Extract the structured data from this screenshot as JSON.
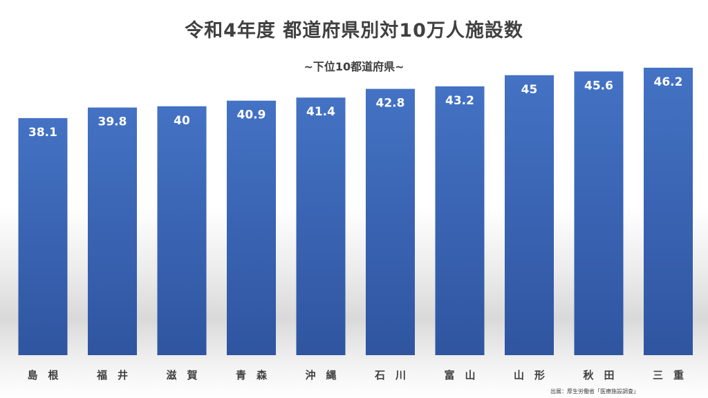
{
  "title": "令和4年度 都道府県別対10万人施設数",
  "subtitle": "~下位10都道府県~",
  "source": "出展：厚生労働省「医療施設調査」",
  "colors": {
    "bar_top": "#4472c4",
    "bar_bottom": "#2f55a0",
    "label": "#ffffff",
    "text": "#404040"
  },
  "chart_data": {
    "type": "bar",
    "categories": [
      "島　根",
      "福　井",
      "滋　賀",
      "青　森",
      "沖　縄",
      "石　川",
      "富　山",
      "山　形",
      "秋　田",
      "三　重"
    ],
    "values": [
      38.1,
      39.8,
      40,
      40.9,
      41.4,
      42.8,
      43.2,
      45,
      45.6,
      46.2
    ],
    "title": "令和4年度 都道府県別対10万人施設数",
    "subtitle": "~下位10都道府県~",
    "xlabel": "",
    "ylabel": "",
    "ylim": [
      0,
      46.2
    ],
    "grid": false,
    "legend": "none",
    "data_labels": true
  }
}
